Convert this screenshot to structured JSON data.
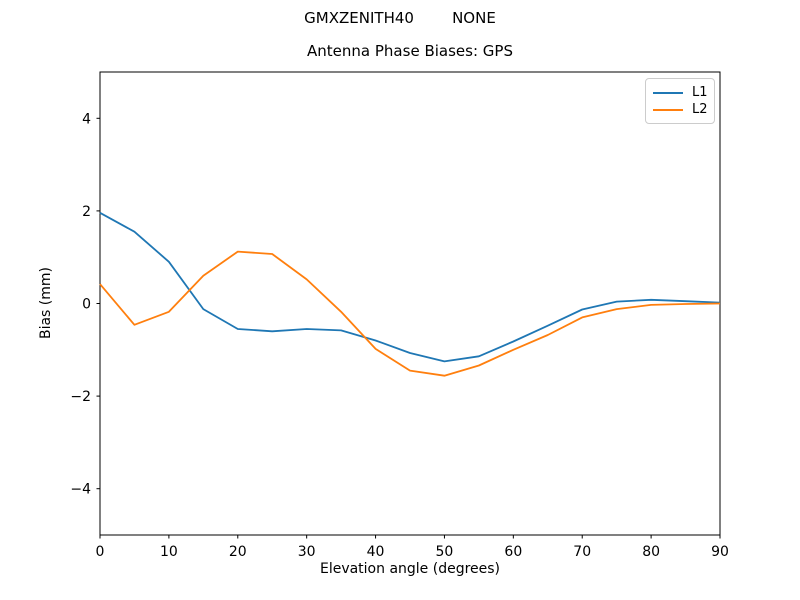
{
  "suptitle": "GMXZENITH40        NONE",
  "chart_data": {
    "type": "line",
    "title": "Antenna Phase Biases: GPS",
    "xlabel": "Elevation angle (degrees)",
    "ylabel": "Bias (mm)",
    "xlim": [
      0,
      90
    ],
    "ylim": [
      -5,
      5
    ],
    "xticks": [
      0,
      10,
      20,
      30,
      40,
      50,
      60,
      70,
      80,
      90
    ],
    "yticks": [
      -4,
      -2,
      0,
      2,
      4
    ],
    "grid": false,
    "legend_position": "upper right",
    "x": [
      0,
      5,
      10,
      15,
      20,
      25,
      30,
      35,
      40,
      45,
      50,
      55,
      60,
      65,
      70,
      75,
      80,
      85,
      90
    ],
    "series": [
      {
        "name": "L1",
        "color": "#1f77b4",
        "values": [
          1.96,
          1.55,
          0.9,
          -0.12,
          -0.55,
          -0.6,
          -0.55,
          -0.58,
          -0.8,
          -1.07,
          -1.25,
          -1.14,
          -0.82,
          -0.48,
          -0.13,
          0.04,
          0.08,
          0.05,
          0.02
        ]
      },
      {
        "name": "L2",
        "color": "#ff7f0e",
        "values": [
          0.42,
          -0.46,
          -0.18,
          0.6,
          1.12,
          1.07,
          0.52,
          -0.18,
          -0.98,
          -1.45,
          -1.56,
          -1.34,
          -1.0,
          -0.68,
          -0.3,
          -0.12,
          -0.03,
          -0.01,
          0.0
        ]
      }
    ],
    "frame_color": "#000000",
    "line_width": 1.8
  }
}
